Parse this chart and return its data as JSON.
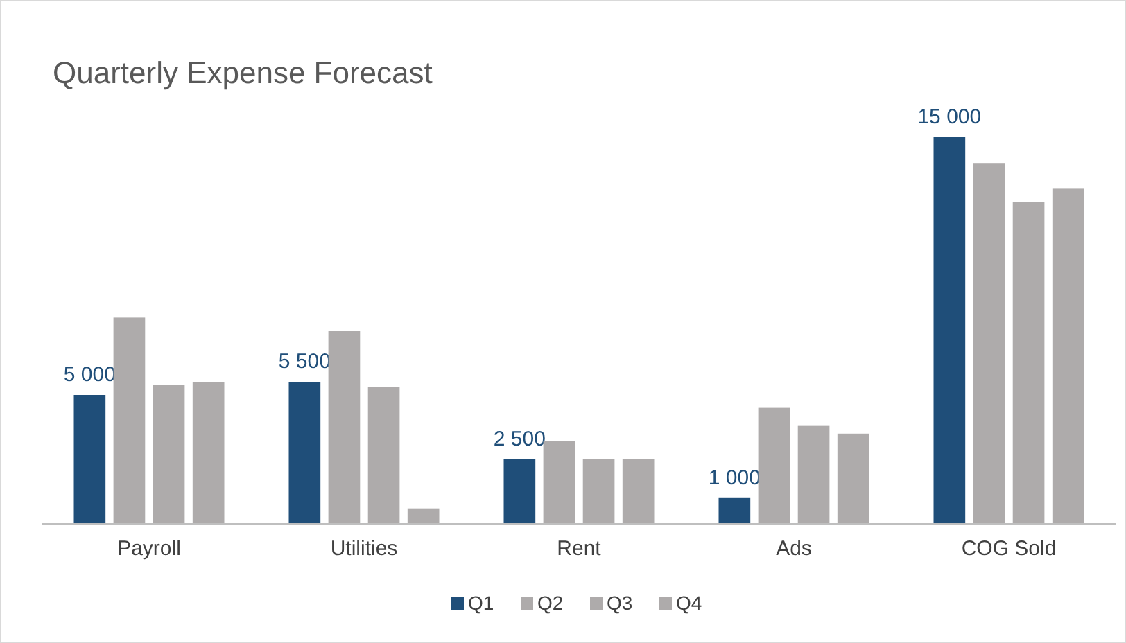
{
  "chart_data": {
    "type": "bar",
    "title": "Quarterly Expense Forecast",
    "categories": [
      "Payroll",
      "Utilities",
      "Rent",
      "Ads",
      "COG Sold"
    ],
    "series": [
      {
        "name": "Q1",
        "color": "#1f4e79",
        "values": [
          5000,
          5500,
          2500,
          1000,
          15000
        ],
        "value_labels": [
          "5 000",
          "5 500",
          "2 500",
          "1 000",
          "15 000"
        ]
      },
      {
        "name": "Q2",
        "color": "#aeabab",
        "values": [
          8000,
          7500,
          3200,
          4500,
          14000
        ]
      },
      {
        "name": "Q3",
        "color": "#aeabab",
        "values": [
          5400,
          5300,
          2500,
          3800,
          12500
        ]
      },
      {
        "name": "Q4",
        "color": "#aeabab",
        "values": [
          5500,
          600,
          2500,
          3500,
          13000
        ]
      }
    ],
    "tick_labels": "x",
    "grid": false,
    "legend": "bottom"
  }
}
